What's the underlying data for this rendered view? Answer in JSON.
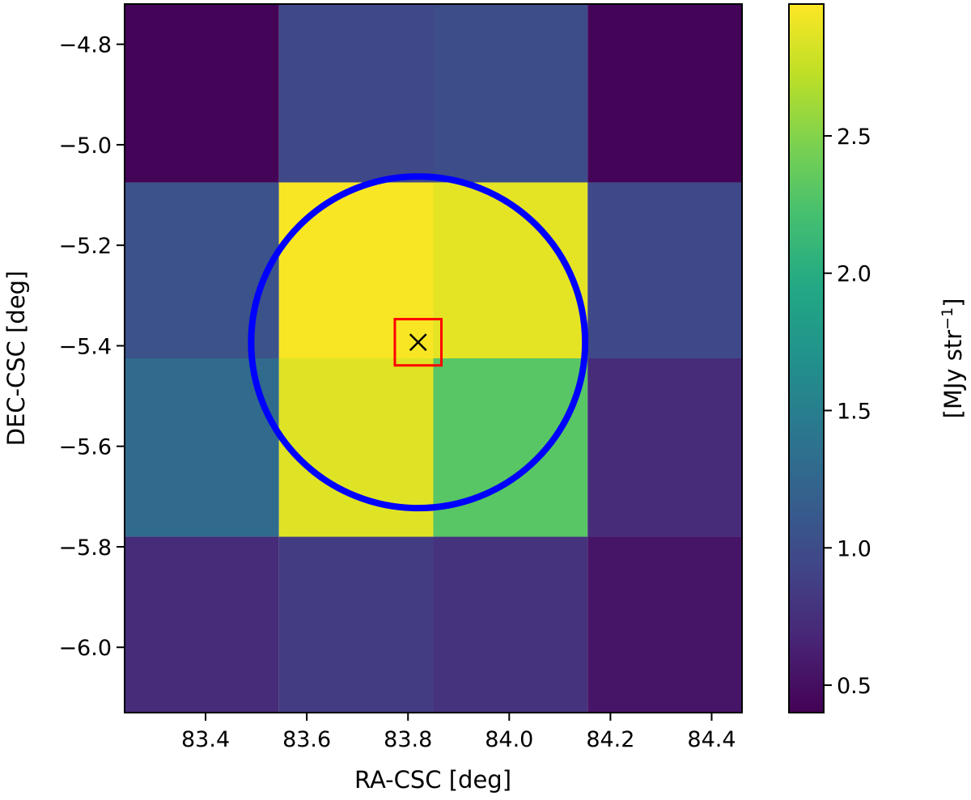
{
  "chart_data": {
    "type": "heatmap",
    "xlabel": "RA-CSC [deg]",
    "ylabel": "DEC-CSC [deg]",
    "xlim": [
      83.24,
      84.46
    ],
    "ylim": [
      -6.13,
      -4.72
    ],
    "x_ticks": [
      {
        "value": 83.4,
        "label": "83.4"
      },
      {
        "value": 83.6,
        "label": "83.6"
      },
      {
        "value": 83.8,
        "label": "83.8"
      },
      {
        "value": 84.0,
        "label": "84.0"
      },
      {
        "value": 84.2,
        "label": "84.2"
      },
      {
        "value": 84.4,
        "label": "84.4"
      }
    ],
    "y_ticks": [
      {
        "value": -4.8,
        "label": "−4.8"
      },
      {
        "value": -5.0,
        "label": "−5.0"
      },
      {
        "value": -5.2,
        "label": "−5.2"
      },
      {
        "value": -5.4,
        "label": "−5.4"
      },
      {
        "value": -5.6,
        "label": "−5.6"
      },
      {
        "value": -5.8,
        "label": "−5.8"
      },
      {
        "value": -6.0,
        "label": "−6.0"
      }
    ],
    "x_edges": [
      83.24,
      83.545,
      83.85,
      84.155,
      84.46
    ],
    "y_edges": [
      -4.72,
      -5.075,
      -5.425,
      -5.78,
      -6.13
    ],
    "values": [
      [
        0.42,
        0.95,
        1.0,
        0.43
      ],
      [
        1.05,
        2.96,
        2.88,
        0.95
      ],
      [
        1.3,
        2.86,
        2.3,
        0.72
      ],
      [
        0.72,
        0.85,
        0.78,
        0.55
      ]
    ],
    "colorbar": {
      "range": [
        0.4,
        2.98
      ],
      "label": "[MJy str",
      "label_sup": "−1",
      "label_end": "]",
      "ticks": [
        {
          "value": 0.5,
          "label": "0.5"
        },
        {
          "value": 1.0,
          "label": "1.0"
        },
        {
          "value": 1.5,
          "label": "1.5"
        },
        {
          "value": 2.0,
          "label": "2.0"
        },
        {
          "value": 2.5,
          "label": "2.5"
        }
      ]
    },
    "overlays": {
      "circle": {
        "center": [
          83.82,
          -5.393
        ],
        "radius_deg": 0.33,
        "color": "#0000ff"
      },
      "box": {
        "center": [
          83.82,
          -5.393
        ],
        "half_width_deg": 0.046,
        "color": "#ff0000"
      },
      "marker": {
        "position": [
          83.82,
          -5.393
        ],
        "symbol": "x",
        "color": "#000000"
      }
    },
    "colormap": "viridis"
  }
}
